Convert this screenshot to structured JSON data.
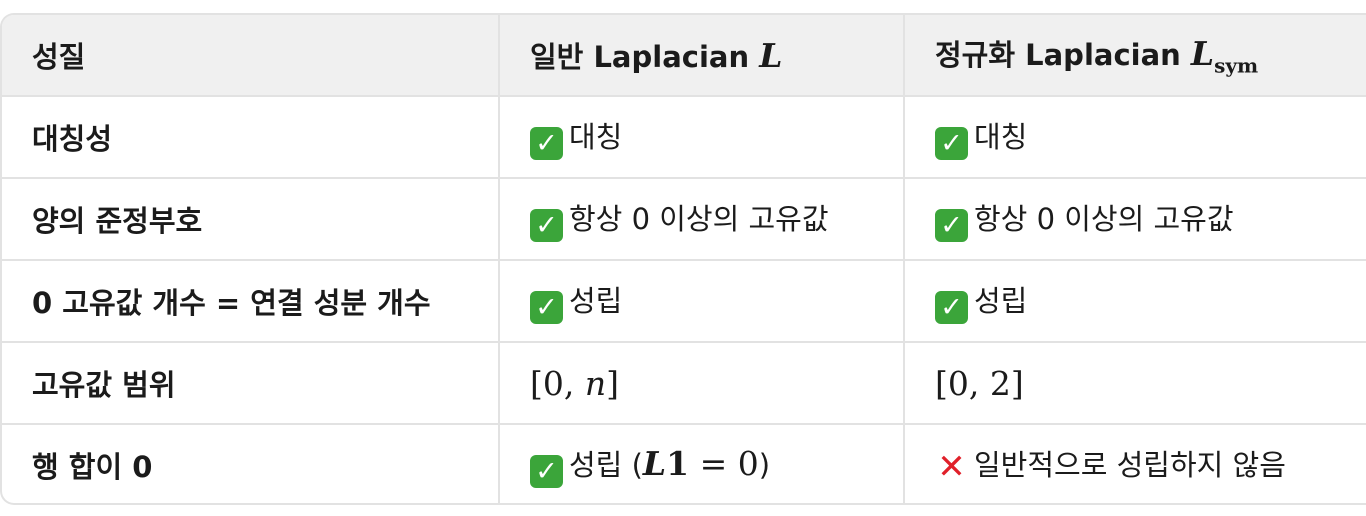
{
  "header": {
    "col1": "성질",
    "col2_text": "일반 Laplacian",
    "col2_math": "L",
    "col3_text": "정규화 Laplacian",
    "col3_math": "L",
    "col3_sub": "sym"
  },
  "rows": [
    {
      "property": "대칭성",
      "general": "대칭",
      "normalized": "대칭"
    },
    {
      "property": "양의 준정부호",
      "general": "항상 0 이상의 고유값",
      "normalized": "항상 0 이상의 고유값"
    },
    {
      "property": "0 고유값 개수 = 연결 성분 개수",
      "general": "성립",
      "normalized": "성립"
    },
    {
      "property": "고유값 범위",
      "general_math": "[0, n]",
      "normalized_math": "[0, 2]"
    },
    {
      "property": "행 합이 0",
      "general": "성립 (",
      "general_math_L": "L",
      "general_math_one": "1",
      "general_math_rest": " = 0",
      "general_close": ")",
      "normalized": "일반적으로 성립하지 않음"
    }
  ],
  "icons": {
    "check": "check-mark-icon",
    "cross": "cross-mark-icon"
  },
  "colors": {
    "check_bg": "#3ba53a",
    "cross": "#e0202a",
    "header_bg": "#f0f0f0",
    "border": "#e2e2e2"
  }
}
